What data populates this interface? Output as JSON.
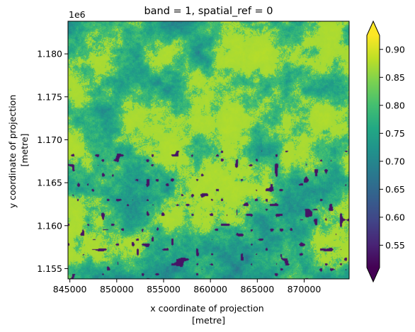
{
  "chart_data": {
    "type": "heatmap",
    "title": "band = 1, spatial_ref = 0",
    "xlabel_lines": [
      "x coordinate of projection",
      "[metre]"
    ],
    "ylabel_lines": [
      "y coordinate of projection",
      "[metre]"
    ],
    "xlim": [
      844800,
      874800
    ],
    "ylim": [
      1153800,
      1183800
    ],
    "x_ticks": [
      845000,
      850000,
      855000,
      860000,
      865000,
      870000
    ],
    "x_tick_labels": [
      "845000",
      "850000",
      "855000",
      "860000",
      "865000",
      "870000"
    ],
    "y_ticks": [
      1.155,
      1.16,
      1.165,
      1.17,
      1.175,
      1.18
    ],
    "y_tick_labels": [
      "1.155",
      "1.160",
      "1.165",
      "1.170",
      "1.175",
      "1.180"
    ],
    "y_offset_label": "1e6",
    "colormap": "viridis",
    "colorbar": {
      "vmin": 0.51,
      "vmax": 0.925,
      "extend": "both",
      "ticks": [
        0.55,
        0.6,
        0.65,
        0.7,
        0.75,
        0.8,
        0.85,
        0.9
      ],
      "tick_labels": [
        "0.55",
        "0.60",
        "0.65",
        "0.70",
        "0.75",
        "0.80",
        "0.85",
        "0.90"
      ]
    },
    "grid": false,
    "legend": "none"
  }
}
